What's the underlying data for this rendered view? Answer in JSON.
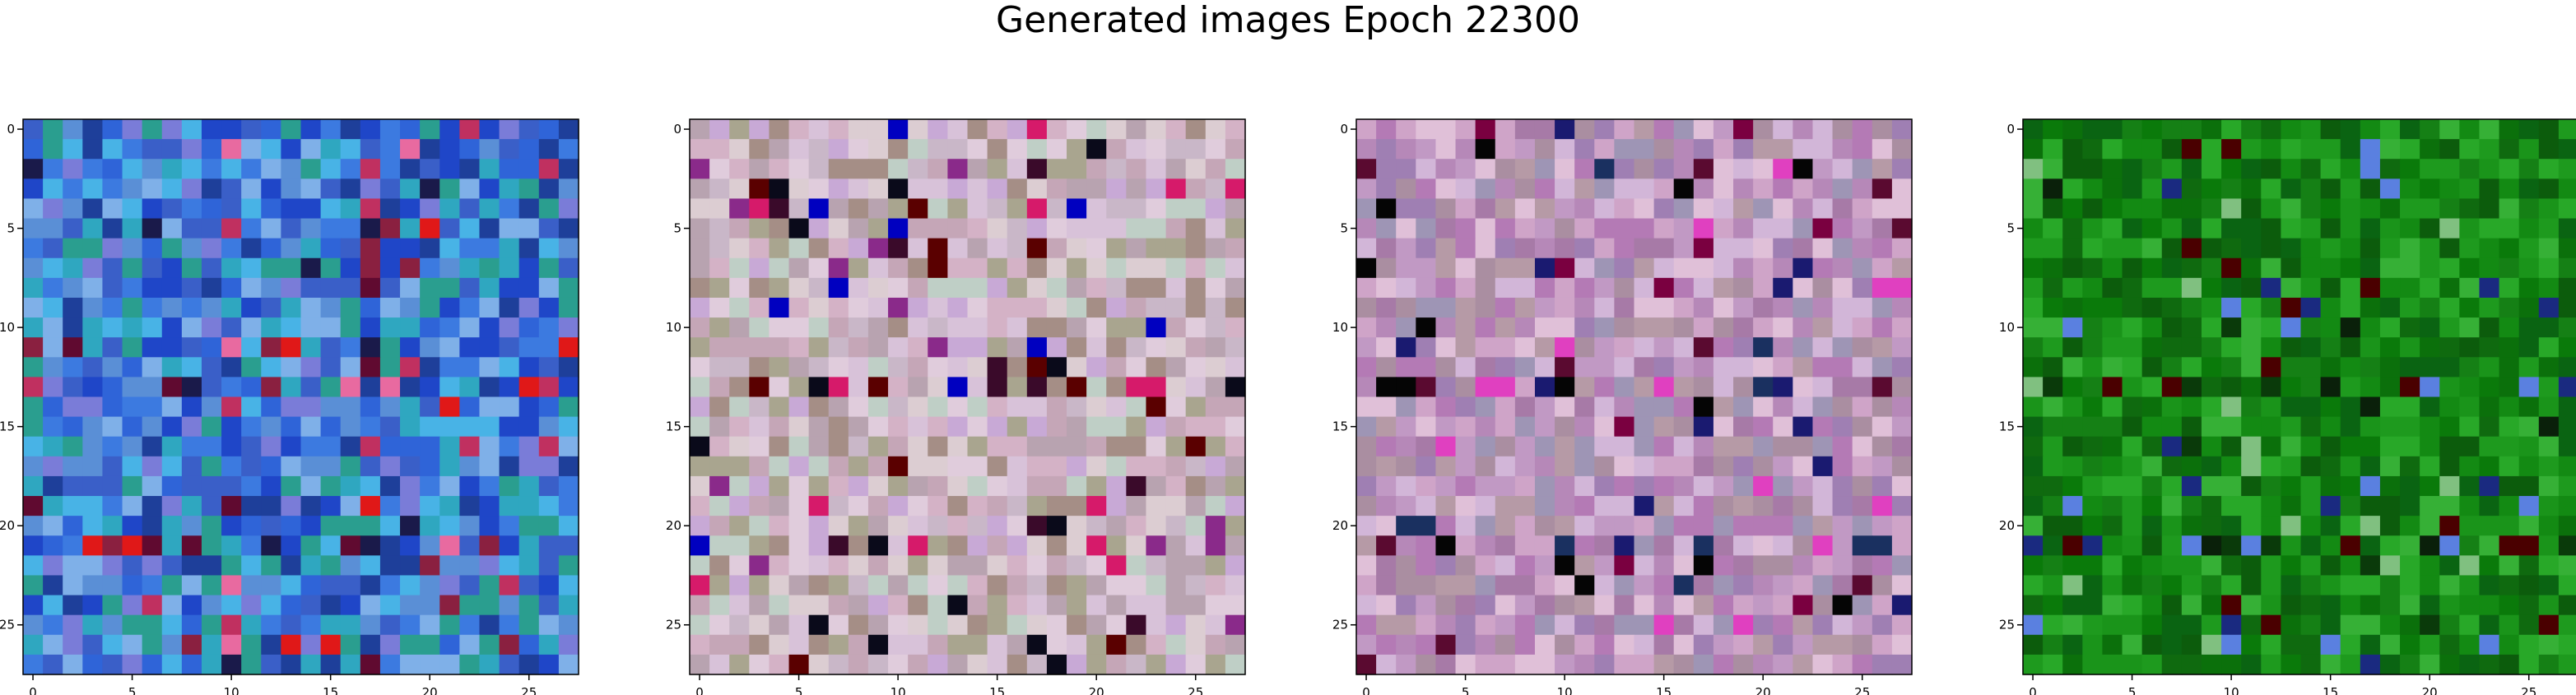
{
  "figure": {
    "title": "Generated images Epoch 22300"
  },
  "axes": {
    "x_ticks": [
      0,
      5,
      10,
      15,
      20,
      25
    ],
    "y_ticks": [
      0,
      5,
      10,
      15,
      20,
      25
    ],
    "grid_size": 28
  },
  "panels": [
    {
      "palette": [
        "#2f64d8",
        "#3c7ae0",
        "#2fa7c0",
        "#5a8fd6",
        "#1f46c8",
        "#48b3e6",
        "#7a7cd8",
        "#2a9e8f",
        "#1e3f9a",
        "#7fb0e8",
        "#3a5fc8"
      ],
      "accents": [
        "#e01818",
        "#c03060",
        "#600a30",
        "#e86aa0",
        "#1a1a4a",
        "#8a2040"
      ]
    },
    {
      "palette": [
        "#c9b7c8",
        "#d8c2d9",
        "#b8a3b0",
        "#e0ccdc",
        "#c5a6b7",
        "#a9a58f",
        "#d4b2c6",
        "#bfcfc6",
        "#c8a9d6",
        "#dccdd2",
        "#a58e86"
      ],
      "accents": [
        "#0a0a1a",
        "#3a0a2a",
        "#0000c0",
        "#d61a6a",
        "#5a0000",
        "#8a2a8a"
      ]
    },
    {
      "palette": [
        "#c199c4",
        "#b688b8",
        "#a77aa7",
        "#d2b6d8",
        "#b69aa6",
        "#9f7fb3",
        "#cfa4c8",
        "#aa8ea1",
        "#9e95b5",
        "#e0c0d8",
        "#b47ab5"
      ],
      "accents": [
        "#050505",
        "#5a0a30",
        "#1a1a70",
        "#7a0040",
        "#e040c0",
        "#1a3060"
      ]
    },
    {
      "palette": [
        "#0a7a0a",
        "#138a13",
        "#0f6a0f",
        "#1e9a1e",
        "#0c5c0c",
        "#28a828",
        "#158015",
        "#0b700b",
        "#36b036",
        "#0a6412",
        "#1a941a"
      ],
      "accents": [
        "#0a200a",
        "#5a80e0",
        "#1a2a80",
        "#80c080",
        "#4a0000",
        "#0a3a0a"
      ]
    }
  ]
}
